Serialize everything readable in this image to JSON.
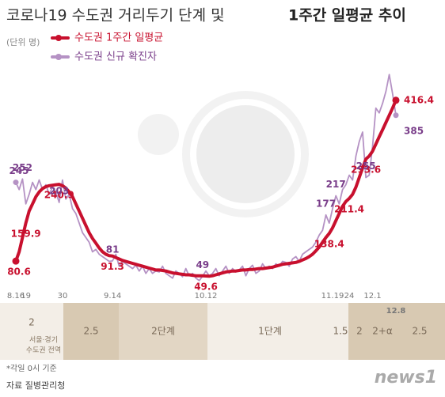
{
  "title_light": "코로나19 수도권 거리두기 단계 및",
  "title_bold": "1주간 일평균 추이",
  "unit": "(단위 명)",
  "chart_data": {
    "type": "line",
    "categories": [
      "8.16",
      null,
      null,
      "19",
      null,
      null,
      null,
      null,
      null,
      null,
      null,
      null,
      null,
      null,
      "30",
      null,
      null,
      null,
      null,
      null,
      null,
      null,
      null,
      null,
      null,
      null,
      null,
      null,
      null,
      "9.14",
      null,
      null,
      null,
      null,
      null,
      null,
      null,
      null,
      null,
      null,
      null,
      null,
      null,
      null,
      null,
      null,
      null,
      null,
      null,
      null,
      null,
      null,
      null,
      null,
      null,
      null,
      null,
      "10.12",
      null,
      null,
      null,
      null,
      null,
      null,
      null,
      null,
      null,
      null,
      null,
      null,
      null,
      null,
      null,
      null,
      null,
      null,
      null,
      null,
      null,
      null,
      null,
      null,
      null,
      null,
      null,
      null,
      null,
      null,
      null,
      null,
      null,
      null,
      null,
      null,
      null,
      "11.19",
      null,
      null,
      null,
      null,
      "24",
      null,
      null,
      null,
      null,
      null,
      null,
      "12.1",
      null,
      null,
      null,
      null,
      null,
      null,
      "12.8"
    ],
    "ylim": [
      0,
      520
    ],
    "series": [
      {
        "name": "수도권 1주간 일평균",
        "color": "#c8102e",
        "values": [
          80.6,
          100,
          130,
          159.9,
          185,
          200,
          215,
          225,
          232,
          236,
          238,
          239,
          240,
          240.9,
          238,
          233,
          225,
          215,
          200,
          185,
          170,
          155,
          140,
          128,
          118,
          108,
          100,
          95,
          92,
          91.3,
          88,
          85,
          82,
          80,
          78,
          76,
          74,
          72,
          70,
          68,
          66,
          64,
          62,
          62,
          61,
          60,
          58,
          56,
          55,
          54,
          53,
          52,
          52,
          51,
          50,
          50,
          50,
          49.6,
          49,
          50,
          52,
          54,
          56,
          58,
          59,
          60,
          60,
          61,
          62,
          62,
          63,
          63,
          64,
          65,
          65,
          66,
          67,
          68,
          70,
          72,
          74,
          75,
          76,
          77,
          78,
          80,
          83,
          86,
          90,
          95,
          102,
          110,
          120,
          130,
          138.4,
          150,
          165,
          180,
          195,
          205,
          211.4,
          220,
          235,
          255,
          275,
          293.6,
          300,
          310,
          325,
          340,
          355,
          370,
          385,
          400,
          416.4
        ],
        "value_labels": [
          "80.6",
          null,
          null,
          "159.9",
          null,
          null,
          null,
          null,
          null,
          null,
          null,
          null,
          null,
          "240.9",
          null,
          null,
          null,
          null,
          null,
          null,
          null,
          null,
          null,
          null,
          null,
          null,
          null,
          null,
          null,
          "91.3",
          null,
          null,
          null,
          null,
          null,
          null,
          null,
          null,
          null,
          null,
          null,
          null,
          null,
          null,
          null,
          null,
          null,
          null,
          null,
          null,
          null,
          null,
          null,
          null,
          null,
          null,
          null,
          "49.6",
          null,
          null,
          null,
          null,
          null,
          null,
          null,
          null,
          null,
          null,
          null,
          null,
          null,
          null,
          null,
          null,
          null,
          null,
          null,
          null,
          null,
          null,
          null,
          null,
          null,
          null,
          null,
          null,
          null,
          null,
          null,
          null,
          null,
          null,
          null,
          null,
          "138.4",
          null,
          null,
          null,
          null,
          null,
          "211.4",
          null,
          null,
          null,
          null,
          "293.6",
          null,
          null,
          null,
          null,
          null,
          null,
          null,
          null,
          "416.4"
        ]
      },
      {
        "name": "수도권 신규 확진자",
        "color": "#b592c4",
        "values": [
          245,
          230,
          252,
          200,
          220,
          245,
          230,
          250,
          230,
          240,
          220,
          235,
          225,
          203,
          250,
          210,
          220,
          190,
          180,
          160,
          140,
          130,
          120,
          100,
          105,
          95,
          90,
          85,
          80,
          81,
          95,
          70,
          80,
          75,
          70,
          65,
          72,
          60,
          70,
          55,
          65,
          55,
          60,
          58,
          70,
          55,
          50,
          45,
          60,
          55,
          48,
          65,
          50,
          55,
          45,
          40,
          49,
          60,
          50,
          55,
          65,
          50,
          60,
          70,
          55,
          65,
          58,
          62,
          70,
          50,
          65,
          72,
          55,
          60,
          75,
          65,
          70,
          65,
          75,
          70,
          80,
          78,
          70,
          85,
          90,
          80,
          95,
          100,
          105,
          110,
          120,
          135,
          145,
          177,
          160,
          190,
          217,
          200,
          230,
          240,
          260,
          250,
          300,
          330,
          350,
          255,
          260,
          320,
          400,
          390,
          410,
          435,
          470,
          430,
          385
        ],
        "value_labels": [
          "245",
          null,
          "252",
          null,
          null,
          null,
          null,
          null,
          null,
          null,
          null,
          null,
          null,
          "203",
          null,
          null,
          null,
          null,
          null,
          null,
          null,
          null,
          null,
          null,
          null,
          null,
          null,
          null,
          null,
          "81",
          null,
          null,
          null,
          null,
          null,
          null,
          null,
          null,
          null,
          null,
          null,
          null,
          null,
          null,
          null,
          null,
          null,
          null,
          null,
          null,
          null,
          null,
          null,
          null,
          null,
          null,
          "49",
          null,
          null,
          null,
          null,
          null,
          null,
          null,
          null,
          null,
          null,
          null,
          null,
          null,
          null,
          null,
          null,
          null,
          null,
          null,
          null,
          null,
          null,
          null,
          null,
          null,
          null,
          null,
          null,
          null,
          null,
          null,
          null,
          null,
          null,
          null,
          null,
          "177",
          null,
          null,
          "217",
          null,
          null,
          null,
          null,
          null,
          null,
          null,
          null,
          "255",
          null,
          null,
          null,
          null,
          null,
          null,
          null,
          null,
          "385"
        ]
      }
    ]
  },
  "stages": [
    "2",
    "2.5",
    "2단계",
    "1단계",
    "1.5",
    "2",
    "2+α",
    "2.5"
  ],
  "stage_note": [
    "서울·경기",
    "수도권 전역"
  ],
  "footnote": "*각일 0시 기준",
  "source": "자료 질병관리청",
  "logo": "news1"
}
